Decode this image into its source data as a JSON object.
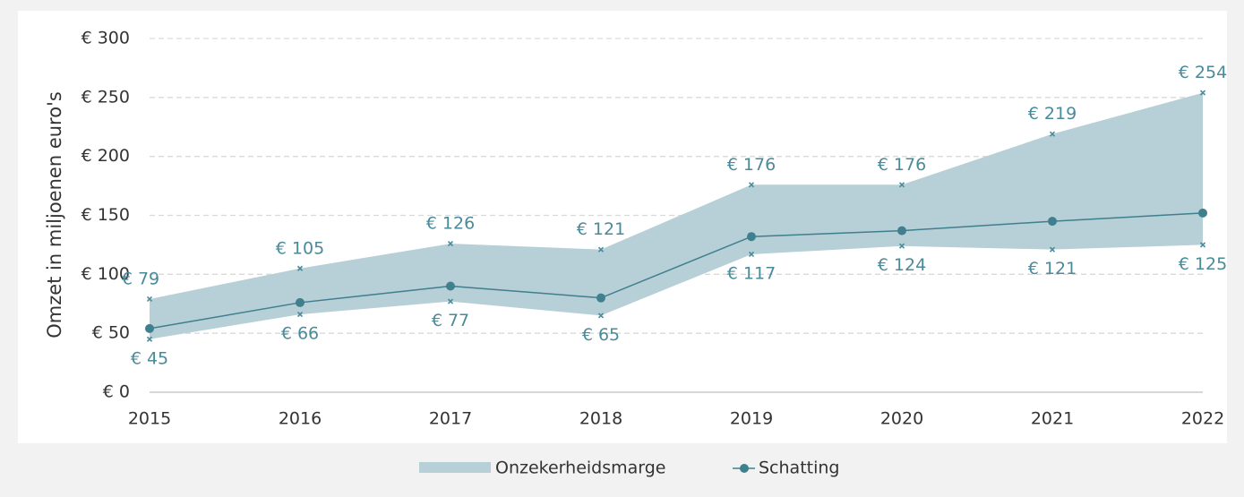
{
  "chart_data": {
    "type": "band-line",
    "y_label": "Omzet in miljoenen euro's",
    "categories": [
      "2015",
      "2016",
      "2017",
      "2018",
      "2019",
      "2020",
      "2021",
      "2022"
    ],
    "ylim": [
      0,
      300
    ],
    "yticks": [
      {
        "value": 0,
        "label": "€ 0"
      },
      {
        "value": 50,
        "label": "€ 50"
      },
      {
        "value": 100,
        "label": "€ 100"
      },
      {
        "value": 150,
        "label": "€ 150"
      },
      {
        "value": 200,
        "label": "€ 200"
      },
      {
        "value": 250,
        "label": "€ 250"
      },
      {
        "value": 300,
        "label": "€ 300"
      }
    ],
    "grid": true,
    "legend": "bottom",
    "series": [
      {
        "name": "Onzekerheidsmarge",
        "color": "#b7cfd6",
        "marker_color": "#4a8a99",
        "upper": {
          "values": [
            79,
            105,
            126,
            121,
            176,
            176,
            219,
            254
          ],
          "value_labels": [
            "€ 79",
            "€ 105",
            "€ 126",
            "€ 121",
            "€ 176",
            "€ 176",
            "€ 219",
            "€ 254"
          ]
        },
        "lower": {
          "values": [
            45,
            66,
            77,
            65,
            117,
            124,
            121,
            125
          ],
          "value_labels": [
            "€ 45",
            "€ 66",
            "€ 77",
            "€ 65",
            "€ 117",
            "€ 124",
            "€ 121",
            "€ 125"
          ]
        }
      },
      {
        "name": "Schatting",
        "color": "#3f7f8e",
        "values": [
          54,
          76,
          90,
          80,
          132,
          137,
          145,
          152
        ]
      }
    ]
  }
}
